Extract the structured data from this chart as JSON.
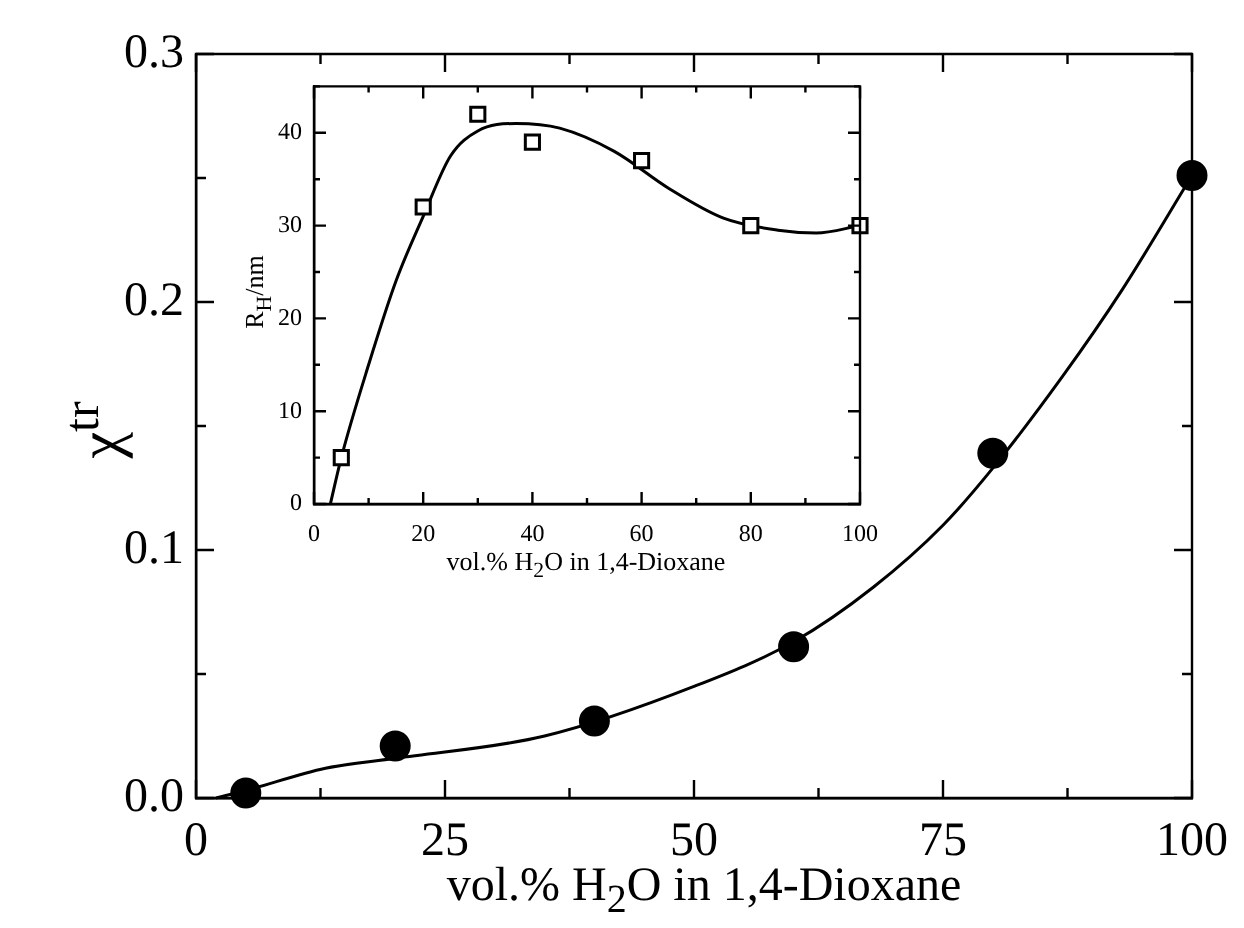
{
  "chart_data": [
    {
      "type": "scatter",
      "xlabel": "vol.% H$_{2}$O in 1,4-Dioxane",
      "ylabel": "χ$^{tr}$",
      "xlim": [
        0,
        100
      ],
      "ylim": [
        0,
        0.3
      ],
      "xticks": [
        0,
        {
          "value": 12.5,
          "label": null
        },
        25,
        {
          "value": 37.5,
          "label": null
        },
        50,
        {
          "value": 62.5,
          "label": null
        },
        75,
        {
          "value": 87.5,
          "label": null
        },
        100
      ],
      "yticks": [
        {
          "value": 0,
          "label": "0.0"
        },
        {
          "value": 0.05,
          "label": null
        },
        {
          "value": 0.1,
          "label": "0.1"
        },
        {
          "value": 0.15,
          "label": null
        },
        {
          "value": 0.2,
          "label": "0.2"
        },
        {
          "value": 0.25,
          "label": null
        },
        {
          "value": 0.3,
          "label": "0.3"
        }
      ],
      "series": [
        {
          "type": "scatter",
          "marker": "circle",
          "color": "#000000",
          "x": [
            5,
            20,
            40,
            60,
            80,
            100
          ],
          "values": [
            0.002,
            0.021,
            0.031,
            0.061,
            0.139,
            0.251
          ]
        },
        {
          "type": "line",
          "marker": "none",
          "color": "#000000",
          "x": [
            2,
            5,
            13,
            20,
            35,
            50,
            60,
            68,
            75,
            80,
            87,
            93,
            100
          ],
          "values": [
            0,
            0.003,
            0.012,
            0.016,
            0.025,
            0.045,
            0.063,
            0.085,
            0.11,
            0.133,
            0.17,
            0.205,
            0.251
          ]
        }
      ]
    },
    {
      "type": "scatter",
      "xlabel": "vol.% H$_{2}$O in 1,4-Dioxane",
      "ylabel": "R$_{H}$/nm",
      "xlim": [
        0,
        100
      ],
      "ylim": [
        0,
        45
      ],
      "xticks": [
        0,
        {
          "value": 10,
          "label": null
        },
        20,
        {
          "value": 30,
          "label": null
        },
        40,
        {
          "value": 50,
          "label": null
        },
        60,
        {
          "value": 70,
          "label": null
        },
        80,
        {
          "value": 90,
          "label": null
        },
        100
      ],
      "yticks": [
        0,
        {
          "value": 5,
          "label": null
        },
        10,
        {
          "value": 15,
          "label": null
        },
        20,
        {
          "value": 25,
          "label": null
        },
        30,
        {
          "value": 35,
          "label": null
        },
        40,
        {
          "value": 45,
          "label": null
        }
      ],
      "series": [
        {
          "type": "scatter",
          "marker": "square",
          "color": "#000000",
          "x": [
            5,
            20,
            30,
            40,
            60,
            80,
            100
          ],
          "values": [
            5,
            32,
            42,
            39,
            37,
            30,
            30
          ]
        },
        {
          "type": "line",
          "marker": "none",
          "color": "#000000",
          "x": [
            3,
            5,
            10,
            15,
            20,
            25,
            30,
            37,
            45,
            55,
            65,
            75,
            85,
            92,
            100
          ],
          "values": [
            0,
            5,
            15,
            24,
            31,
            37.5,
            40.2,
            41,
            40.5,
            38,
            34,
            30.8,
            29.5,
            29.2,
            30
          ]
        }
      ]
    }
  ]
}
